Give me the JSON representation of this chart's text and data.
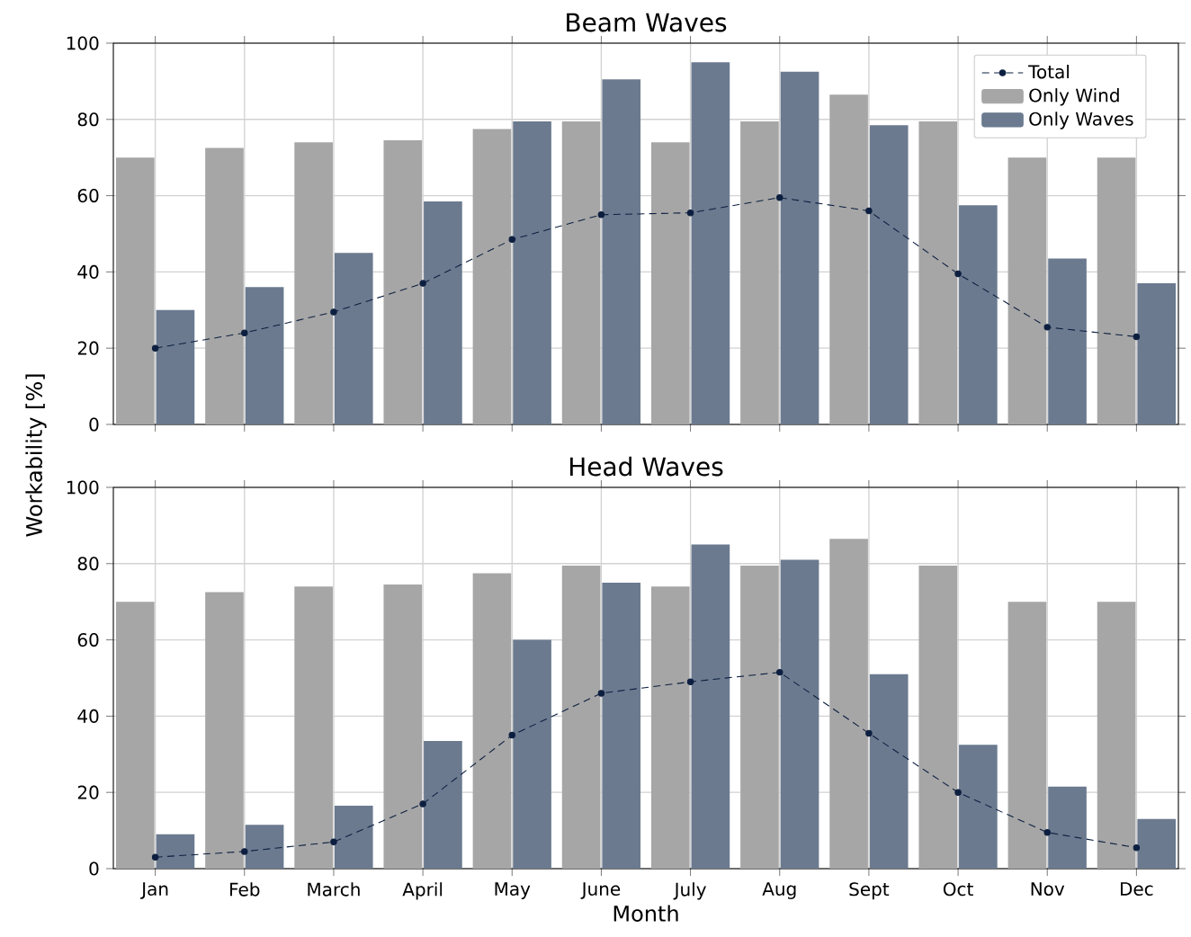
{
  "chart_data": [
    {
      "type": "bar",
      "title": "Beam Waves",
      "ylabel": "Workability [%]",
      "categories": [
        null,
        null,
        null,
        null,
        null,
        null,
        null,
        null,
        null,
        null,
        null,
        null
      ],
      "series": [
        {
          "name": "Total",
          "type": "line",
          "color": "#0d1f40",
          "marker": "circle",
          "line_style": "dashed",
          "values": [
            20,
            24,
            29.5,
            37,
            48.5,
            55,
            55.5,
            59.5,
            56,
            39.5,
            25.5,
            23
          ]
        },
        {
          "name": "Only Wind",
          "color": "#a6a6a6",
          "values": [
            70,
            72.5,
            74,
            74.5,
            77.5,
            79.5,
            74,
            79.5,
            86.5,
            79.5,
            70,
            70
          ]
        },
        {
          "name": "Only Waves",
          "color": "#6b7a8f",
          "values": [
            30,
            36,
            45,
            58.5,
            79.5,
            90.5,
            95,
            92.5,
            78.5,
            57.5,
            43.5,
            37
          ]
        }
      ],
      "ylim": [
        0,
        100
      ],
      "yticks": [
        0,
        20,
        40,
        60,
        80,
        100
      ],
      "grid": true,
      "legend": "top right",
      "tick_labels": "y"
    },
    {
      "type": "bar",
      "title": "Head Waves",
      "xlabel": "Month",
      "categories": [
        "Jan",
        "Feb",
        "March",
        "April",
        "May",
        "June",
        "July",
        "Aug",
        "Sept",
        "Oct",
        "Nov",
        "Dec"
      ],
      "series": [
        {
          "type": "line",
          "color": "#0d1f40",
          "marker": "circle",
          "line_style": "dashed",
          "values": [
            3,
            4.5,
            7,
            17,
            35,
            46,
            49,
            51.5,
            35.5,
            20,
            9.5,
            5.5
          ]
        },
        {
          "color": "#a6a6a6",
          "values": [
            70,
            72.5,
            74,
            74.5,
            77.5,
            79.5,
            74,
            79.5,
            86.5,
            79.5,
            70,
            70
          ]
        },
        {
          "color": "#6b7a8f",
          "values": [
            9,
            11.5,
            16.5,
            33.5,
            60,
            75,
            85,
            81,
            51,
            32.5,
            21.5,
            13
          ]
        }
      ],
      "ylim": [
        0,
        100
      ],
      "yticks": [
        0,
        20,
        40,
        60,
        80,
        100
      ],
      "grid": true
    }
  ]
}
